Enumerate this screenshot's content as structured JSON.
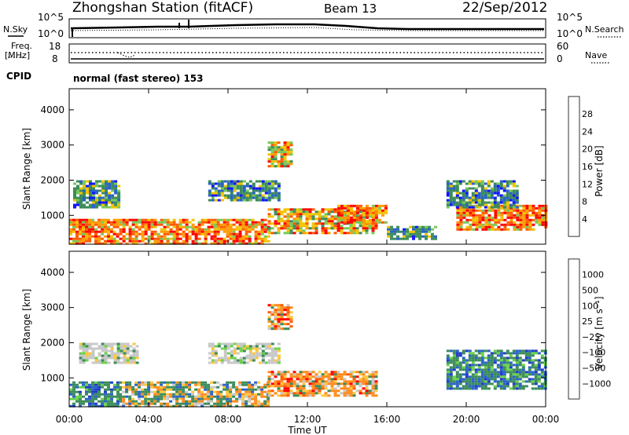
{
  "header": {
    "title": "Zhongshan Station (fitACF)",
    "beam": "Beam 13",
    "date": "22/Sep/2012"
  },
  "labels": {
    "nsky": "N.Sky",
    "nsearch": "N.Search",
    "freq": "Freq.",
    "mhz": "[MHz]",
    "nave": "Nave",
    "cpid": "CPID",
    "cpid_value": "normal (fast stereo) 153",
    "noise_ticks_left": [
      "10^5",
      "10^0"
    ],
    "noise_ticks_right": [
      "10^5",
      "10^0"
    ],
    "freq_ticks": [
      "18",
      "8"
    ],
    "nave_ticks": [
      "60",
      "0"
    ]
  },
  "chart_data": [
    {
      "type": "heatmap",
      "name": "power",
      "ylabel": "Slant Range [km]",
      "ylim": [
        180,
        4600
      ],
      "y_ticks": [
        1000,
        2000,
        3000,
        4000
      ],
      "x_range_hours": [
        0,
        24
      ],
      "colorbar": {
        "label": "Power [dB]",
        "ticks": [
          "28",
          "24",
          "20",
          "16",
          "12",
          "8",
          "4"
        ],
        "colors": [
          "#ff0000",
          "#ff5a00",
          "#ff9a00",
          "#f2c400",
          "#78c85a",
          "#3c8c5a",
          "#2a62c8",
          "#1414ff"
        ]
      },
      "echo_regions": [
        {
          "t": [
            0.0,
            2.2
          ],
          "r": [
            200,
            900
          ],
          "level": "high"
        },
        {
          "t": [
            2.2,
            10.0
          ],
          "r": [
            200,
            900
          ],
          "level": "high"
        },
        {
          "t": [
            10.0,
            15.5
          ],
          "r": [
            500,
            1200
          ],
          "level": "mid"
        },
        {
          "t": [
            13.5,
            16.0
          ],
          "r": [
            800,
            1300
          ],
          "level": "high"
        },
        {
          "t": [
            0.2,
            2.5
          ],
          "r": [
            1200,
            2000
          ],
          "level": "low"
        },
        {
          "t": [
            7.0,
            10.5
          ],
          "r": [
            1400,
            2000
          ],
          "level": "low"
        },
        {
          "t": [
            10.0,
            11.2
          ],
          "r": [
            2400,
            3100
          ],
          "level": "mid"
        },
        {
          "t": [
            16.0,
            18.5
          ],
          "r": [
            300,
            700
          ],
          "level": "low"
        },
        {
          "t": [
            19.5,
            24.0
          ],
          "r": [
            600,
            1300
          ],
          "level": "high"
        },
        {
          "t": [
            19.0,
            22.5
          ],
          "r": [
            1200,
            2000
          ],
          "level": "low"
        }
      ]
    },
    {
      "type": "heatmap",
      "name": "velocity",
      "ylabel": "Slant Range [km]",
      "ylim": [
        180,
        4600
      ],
      "y_ticks": [
        1000,
        2000,
        3000,
        4000
      ],
      "x_range_hours": [
        0,
        24
      ],
      "xlabel": "Time UT",
      "x_ticks": [
        "00:00",
        "04:00",
        "08:00",
        "12:00",
        "16:00",
        "20:00",
        "00:00"
      ],
      "colorbar": {
        "label": "Velocity [m s⁻¹]",
        "ticks": [
          "1000",
          "500",
          "100",
          "25",
          "−25",
          "−100",
          "−500",
          "−1000"
        ],
        "colors": [
          "#1e3cc8",
          "#2a64c8",
          "#3c8c5a",
          "#6cd24c",
          "#c8c8c8",
          "#ffc83c",
          "#ff8c1e",
          "#ff5a00",
          "#ff0000"
        ]
      },
      "echo_regions": [
        {
          "t": [
            0.0,
            2.5
          ],
          "r": [
            200,
            900
          ],
          "v": "toward"
        },
        {
          "t": [
            2.5,
            10.0
          ],
          "r": [
            200,
            900
          ],
          "v": "mixed"
        },
        {
          "t": [
            10.0,
            15.5
          ],
          "r": [
            500,
            1200
          ],
          "v": "away"
        },
        {
          "t": [
            0.5,
            3.5
          ],
          "r": [
            1400,
            2000
          ],
          "v": "slow"
        },
        {
          "t": [
            7.0,
            10.5
          ],
          "r": [
            1400,
            2000
          ],
          "v": "slow"
        },
        {
          "t": [
            10.0,
            11.2
          ],
          "r": [
            2400,
            3100
          ],
          "v": "away"
        },
        {
          "t": [
            19.0,
            24.0
          ],
          "r": [
            700,
            1800
          ],
          "v": "toward"
        }
      ]
    }
  ]
}
